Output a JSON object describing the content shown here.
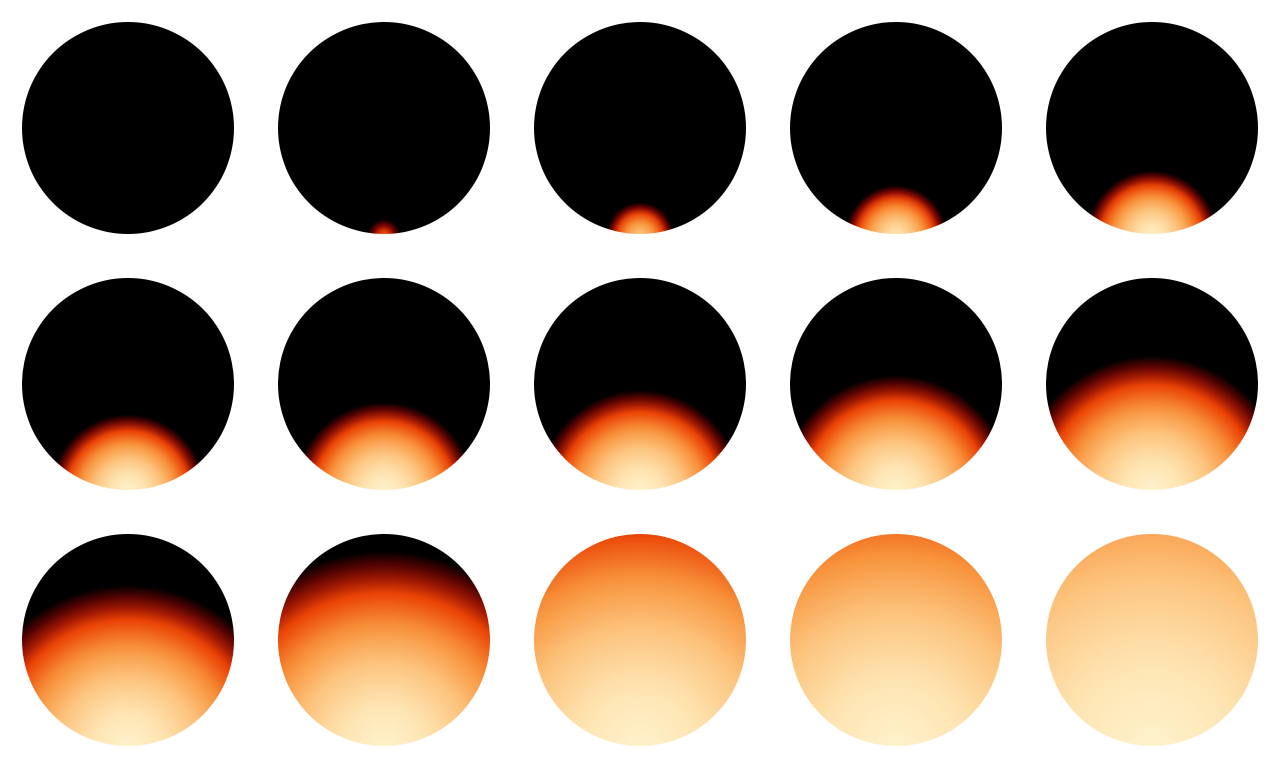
{
  "grid": {
    "rows": 3,
    "cols": 5
  },
  "colormap": [
    {
      "level": 0.0,
      "color": "#000000"
    },
    {
      "level": 0.12,
      "color": "#7a0403"
    },
    {
      "level": 0.24,
      "color": "#ea4204"
    },
    {
      "level": 0.42,
      "color": "#f8923a"
    },
    {
      "level": 0.62,
      "color": "#fcc47e"
    },
    {
      "level": 0.82,
      "color": "#fee3b0"
    },
    {
      "level": 1.0,
      "color": "#fff2cc"
    }
  ],
  "frames": [
    {
      "index": 1,
      "glow_level": 0.0,
      "peak": 0.0
    },
    {
      "index": 2,
      "glow_level": 0.06,
      "peak": 0.3
    },
    {
      "index": 3,
      "glow_level": 0.13,
      "peak": 0.65
    },
    {
      "index": 4,
      "glow_level": 0.2,
      "peak": 0.85
    },
    {
      "index": 5,
      "glow_level": 0.26,
      "peak": 0.95
    },
    {
      "index": 6,
      "glow_level": 0.31,
      "peak": 1.0
    },
    {
      "index": 7,
      "glow_level": 0.36,
      "peak": 1.0
    },
    {
      "index": 8,
      "glow_level": 0.41,
      "peak": 1.0
    },
    {
      "index": 9,
      "glow_level": 0.47,
      "peak": 1.0
    },
    {
      "index": 10,
      "glow_level": 0.55,
      "peak": 1.0
    },
    {
      "index": 11,
      "glow_level": 0.66,
      "peak": 1.0
    },
    {
      "index": 12,
      "glow_level": 0.8,
      "peak": 1.0
    },
    {
      "index": 13,
      "glow_level": 1.0,
      "peak": 1.0
    },
    {
      "index": 14,
      "glow_level": 1.0,
      "peak": 1.0
    },
    {
      "index": 15,
      "glow_level": 1.0,
      "peak": 1.0
    }
  ],
  "frame_brightness_floor": [
    0,
    0,
    0,
    0,
    0,
    0,
    0,
    0,
    0,
    0,
    0,
    0,
    0.12,
    0.24,
    0.42
  ]
}
